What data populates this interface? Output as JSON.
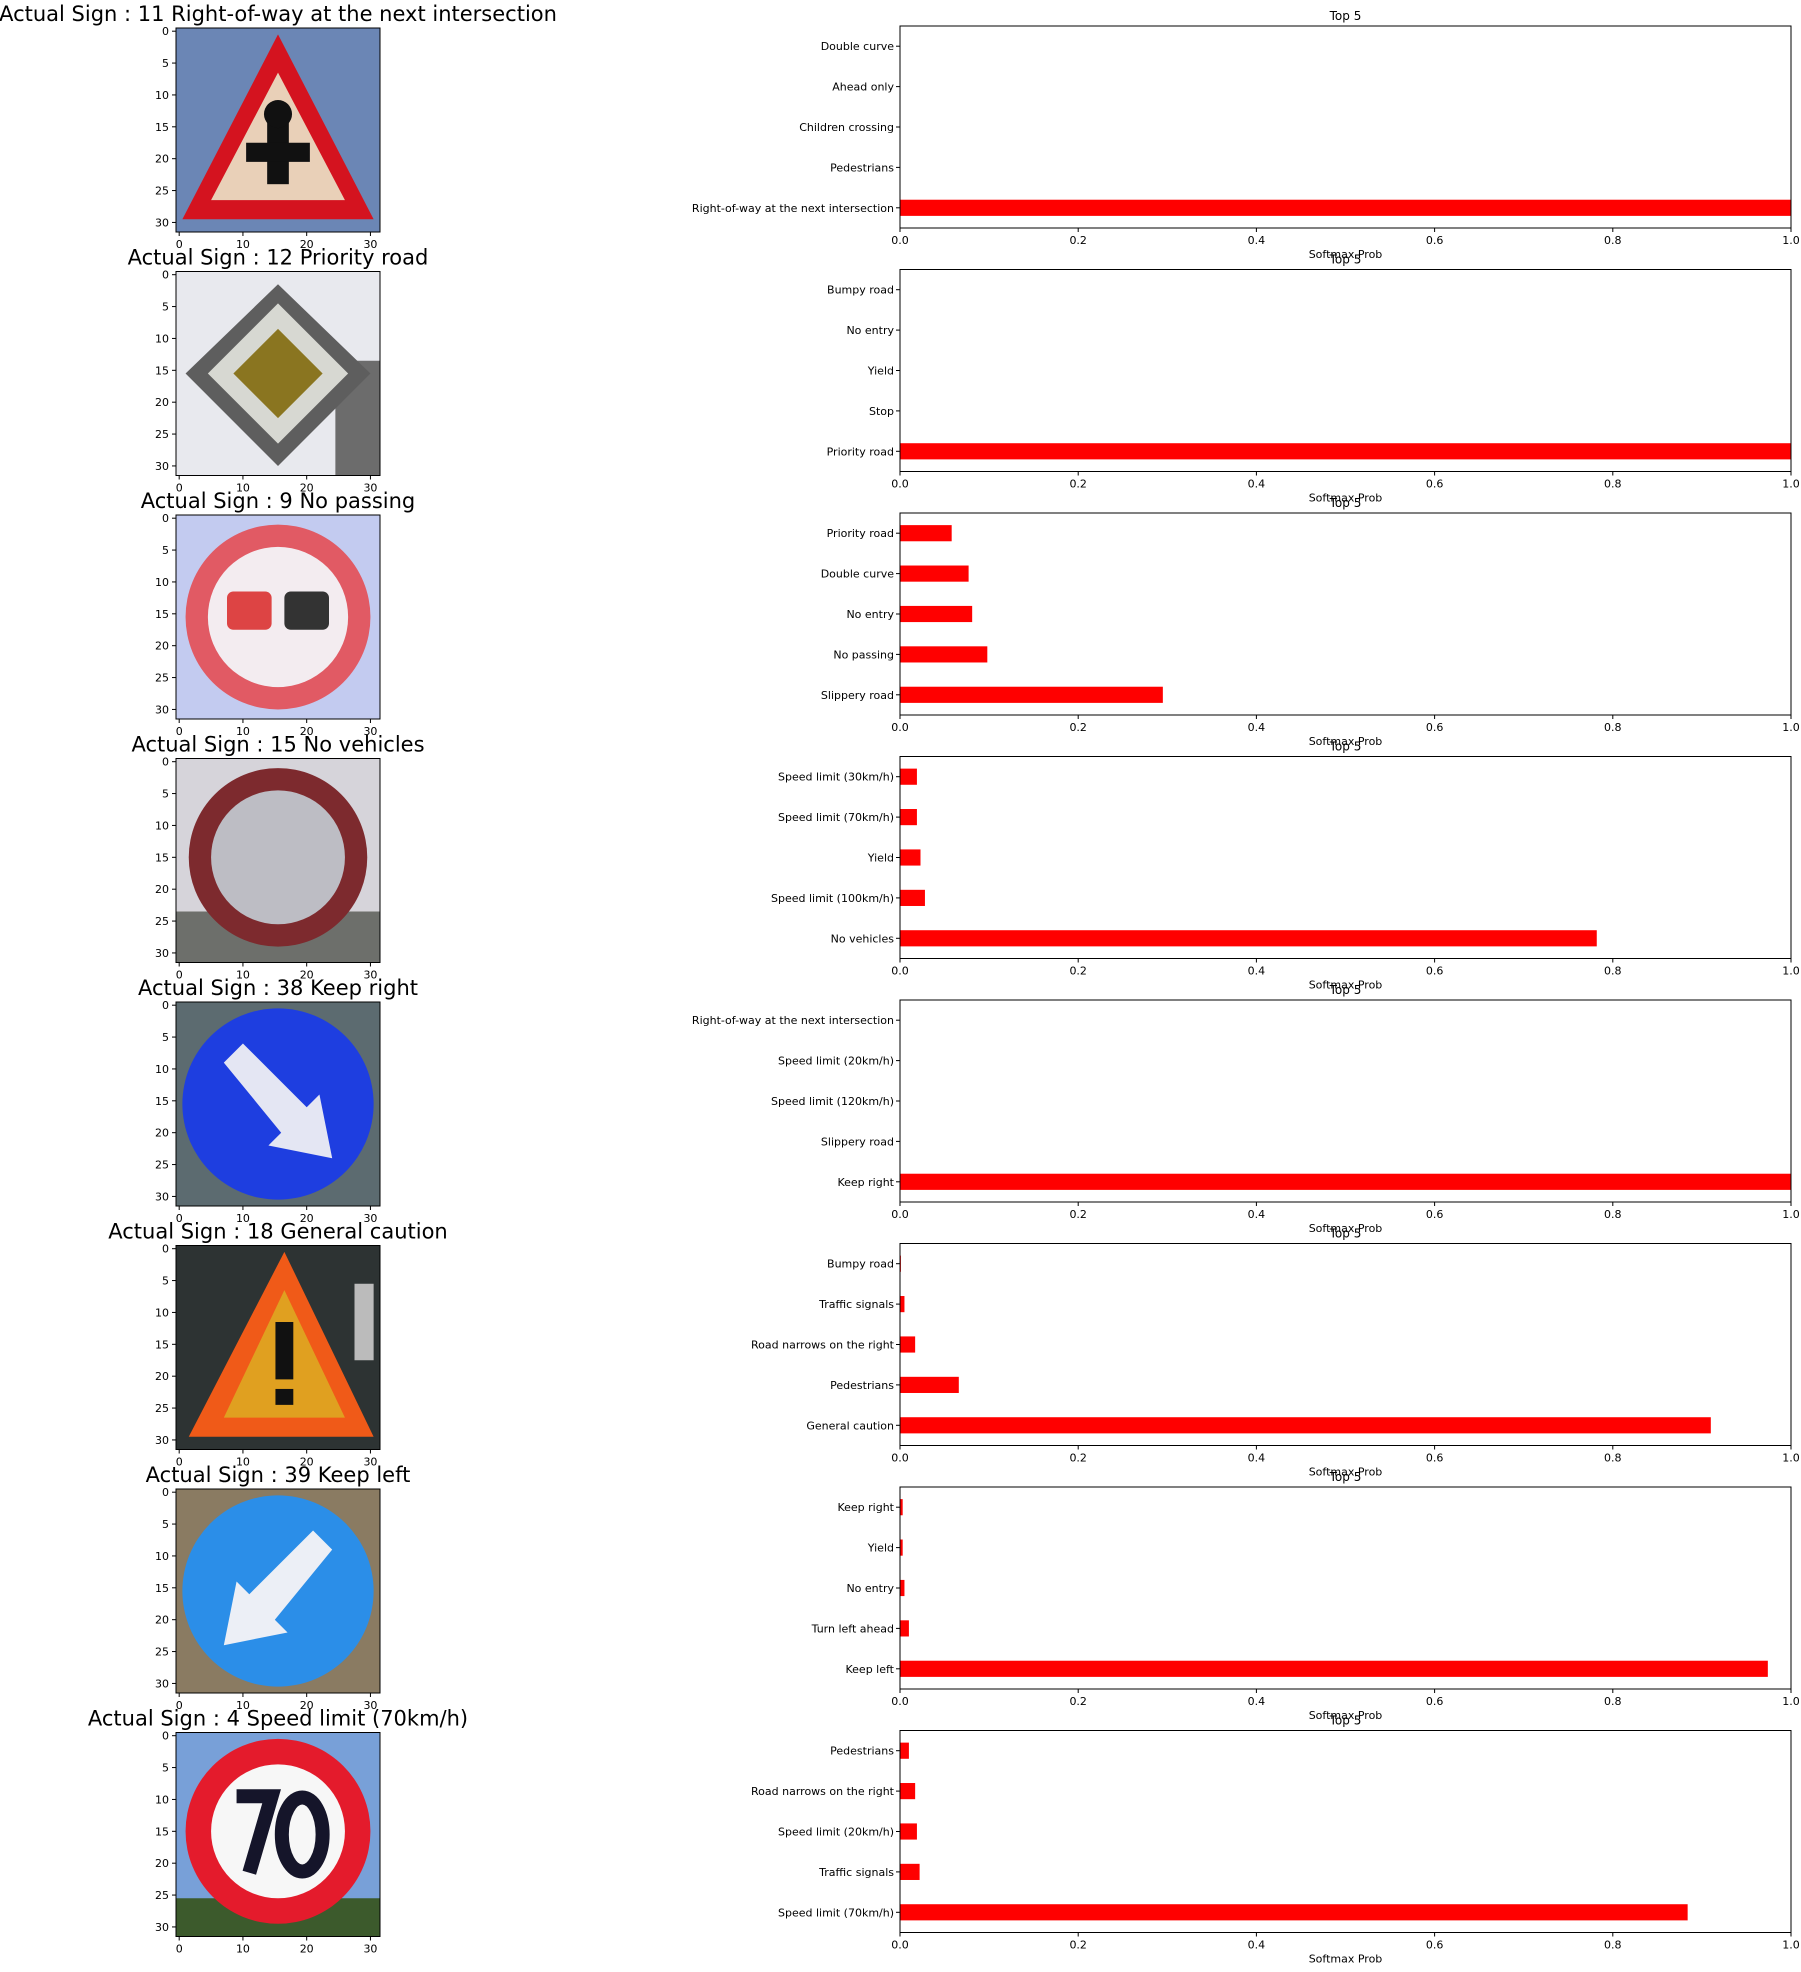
{
  "figure": {
    "panel_title": "Top 5",
    "xlabel": "Softmax Prob",
    "xticks": [
      "0.0",
      "0.2",
      "0.4",
      "0.6",
      "0.8",
      "1.0"
    ],
    "image_ticks": [
      "0",
      "5",
      "10",
      "15",
      "20",
      "25",
      "30"
    ],
    "image_xticks": [
      "0",
      "10",
      "20",
      "30"
    ],
    "bar_color": "#ff0000"
  },
  "rows": [
    {
      "title": "Actual Sign : 11  Right-of-way at the next intersection",
      "image_icon": "right-of-way-sign-icon"
    },
    {
      "title": "Actual Sign : 12  Priority road",
      "image_icon": "priority-road-sign-icon"
    },
    {
      "title": "Actual Sign : 9  No passing",
      "image_icon": "no-passing-sign-icon"
    },
    {
      "title": "Actual Sign : 15  No vehicles",
      "image_icon": "no-vehicles-sign-icon"
    },
    {
      "title": "Actual Sign : 38  Keep right",
      "image_icon": "keep-right-sign-icon"
    },
    {
      "title": "Actual Sign : 18  General caution",
      "image_icon": "general-caution-sign-icon"
    },
    {
      "title": "Actual Sign : 39  Keep left",
      "image_icon": "keep-left-sign-icon"
    },
    {
      "title": "Actual Sign : 4  Speed limit (70km/h)",
      "image_icon": "speed-limit-70-sign-icon"
    }
  ],
  "chart_data": [
    {
      "type": "bar",
      "orientation": "horizontal",
      "title": "Top 5",
      "xlabel": "Softmax Prob",
      "xlim": [
        0,
        1
      ],
      "categories": [
        "Right-of-way at the next intersection",
        "Pedestrians",
        "Children crossing",
        "Ahead only",
        "Double curve"
      ],
      "values": [
        1.0,
        0.0,
        0.0,
        0.0,
        0.0
      ]
    },
    {
      "type": "bar",
      "orientation": "horizontal",
      "title": "Top 5",
      "xlabel": "Softmax Prob",
      "xlim": [
        0,
        1
      ],
      "categories": [
        "Priority road",
        "Stop",
        "Yield",
        "No entry",
        "Bumpy road"
      ],
      "values": [
        1.0,
        0.0,
        0.0,
        0.0,
        0.0
      ]
    },
    {
      "type": "bar",
      "orientation": "horizontal",
      "title": "Top 5",
      "xlabel": "Softmax Prob",
      "xlim": [
        0,
        1
      ],
      "categories": [
        "Slippery road",
        "No passing",
        "No entry",
        "Double curve",
        "Priority road"
      ],
      "values": [
        0.295,
        0.098,
        0.081,
        0.077,
        0.058
      ]
    },
    {
      "type": "bar",
      "orientation": "horizontal",
      "title": "Top 5",
      "xlabel": "Softmax Prob",
      "xlim": [
        0,
        1
      ],
      "categories": [
        "No vehicles",
        "Speed limit (100km/h)",
        "Yield",
        "Speed limit (70km/h)",
        "Speed limit (30km/h)"
      ],
      "values": [
        0.782,
        0.028,
        0.023,
        0.019,
        0.019
      ]
    },
    {
      "type": "bar",
      "orientation": "horizontal",
      "title": "Top 5",
      "xlabel": "Softmax Prob",
      "xlim": [
        0,
        1
      ],
      "categories": [
        "Keep right",
        "Slippery road",
        "Speed limit (120km/h)",
        "Speed limit (20km/h)",
        "Right-of-way at the next intersection"
      ],
      "values": [
        1.0,
        0.0,
        0.0,
        0.0,
        0.0
      ]
    },
    {
      "type": "bar",
      "orientation": "horizontal",
      "title": "Top 5",
      "xlabel": "Softmax Prob",
      "xlim": [
        0,
        1
      ],
      "categories": [
        "General caution",
        "Pedestrians",
        "Road narrows on the right",
        "Traffic signals",
        "Bumpy road"
      ],
      "values": [
        0.91,
        0.066,
        0.017,
        0.005,
        0.001
      ]
    },
    {
      "type": "bar",
      "orientation": "horizontal",
      "title": "Top 5",
      "xlabel": "Softmax Prob",
      "xlim": [
        0,
        1
      ],
      "categories": [
        "Keep left",
        "Turn left ahead",
        "No entry",
        "Yield",
        "Keep right"
      ],
      "values": [
        0.974,
        0.01,
        0.005,
        0.003,
        0.003
      ]
    },
    {
      "type": "bar",
      "orientation": "horizontal",
      "title": "Top 5",
      "xlabel": "Softmax Prob",
      "xlim": [
        0,
        1
      ],
      "categories": [
        "Speed limit (70km/h)",
        "Traffic signals",
        "Speed limit (20km/h)",
        "Road narrows on the right",
        "Pedestrians"
      ],
      "values": [
        0.884,
        0.022,
        0.019,
        0.017,
        0.01
      ]
    }
  ]
}
